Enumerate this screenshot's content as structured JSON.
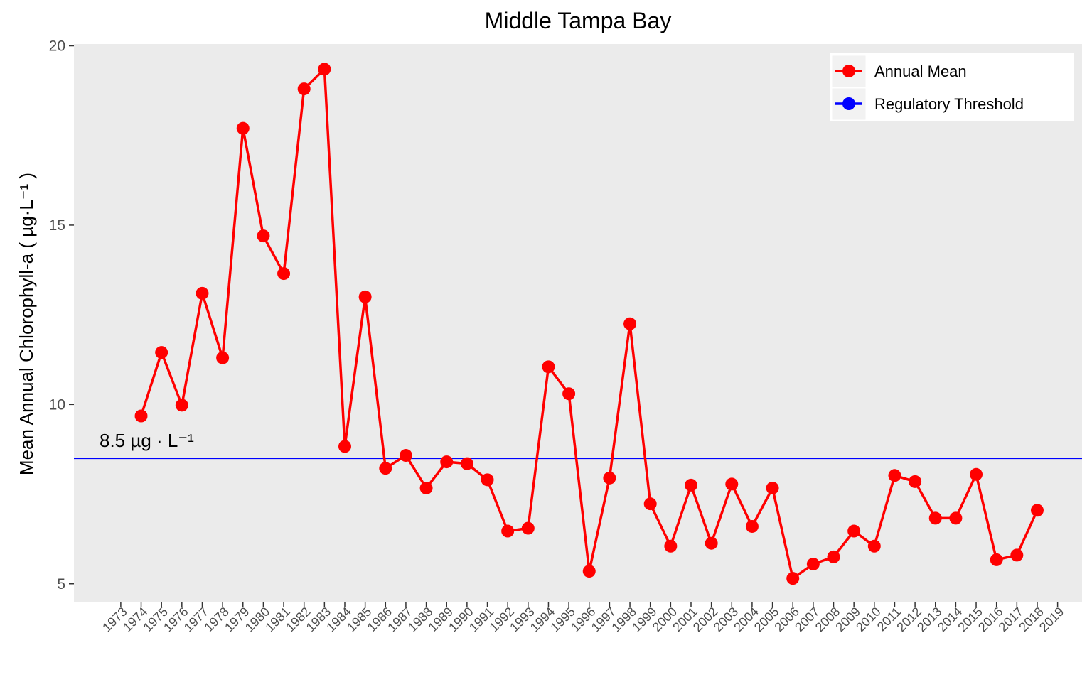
{
  "chart_data": {
    "type": "line",
    "title": "Middle Tampa Bay",
    "ylabel": "Mean Annual Chlorophyll-a ( µg·L⁻¹ )",
    "xlabel": "",
    "ylim": [
      4.5,
      20.05
    ],
    "xlim": [
      1970.7,
      2020.2
    ],
    "yticks": [
      5,
      10,
      15,
      20
    ],
    "xticks": [
      1973,
      1974,
      1975,
      1976,
      1977,
      1978,
      1979,
      1980,
      1981,
      1982,
      1983,
      1984,
      1985,
      1986,
      1987,
      1988,
      1989,
      1990,
      1991,
      1992,
      1993,
      1994,
      1995,
      1996,
      1997,
      1998,
      1999,
      2000,
      2001,
      2002,
      2003,
      2004,
      2005,
      2006,
      2007,
      2008,
      2009,
      2010,
      2011,
      2012,
      2013,
      2014,
      2015,
      2016,
      2017,
      2018,
      2019
    ],
    "grid": false,
    "legend_position": "top-right",
    "series": [
      {
        "name": "Annual Mean",
        "color": "#ff0000",
        "x": [
          1974,
          1975,
          1976,
          1977,
          1978,
          1979,
          1980,
          1981,
          1982,
          1983,
          1984,
          1985,
          1986,
          1987,
          1988,
          1989,
          1990,
          1991,
          1992,
          1993,
          1994,
          1995,
          1996,
          1997,
          1998,
          1999,
          2000,
          2001,
          2002,
          2003,
          2004,
          2005,
          2006,
          2007,
          2008,
          2009,
          2010,
          2011,
          2012,
          2013,
          2014,
          2015,
          2016,
          2017,
          2018
        ],
        "values": [
          9.68,
          11.45,
          9.98,
          13.1,
          11.3,
          17.7,
          14.7,
          13.65,
          18.8,
          19.35,
          8.83,
          13.0,
          8.22,
          8.58,
          7.67,
          8.4,
          8.35,
          7.9,
          6.47,
          6.55,
          11.05,
          10.3,
          5.35,
          7.95,
          12.25,
          7.23,
          6.05,
          7.75,
          6.13,
          7.78,
          6.6,
          7.67,
          5.15,
          5.55,
          5.75,
          6.47,
          6.05,
          8.02,
          7.85,
          6.83,
          6.83,
          8.05,
          5.67,
          5.8,
          7.05
        ]
      }
    ],
    "threshold": {
      "name": "Regulatory Threshold",
      "value": 8.5,
      "color": "#0000ff",
      "label": "8.5 µg · L⁻¹"
    },
    "panel_background": "#ebebeb"
  }
}
